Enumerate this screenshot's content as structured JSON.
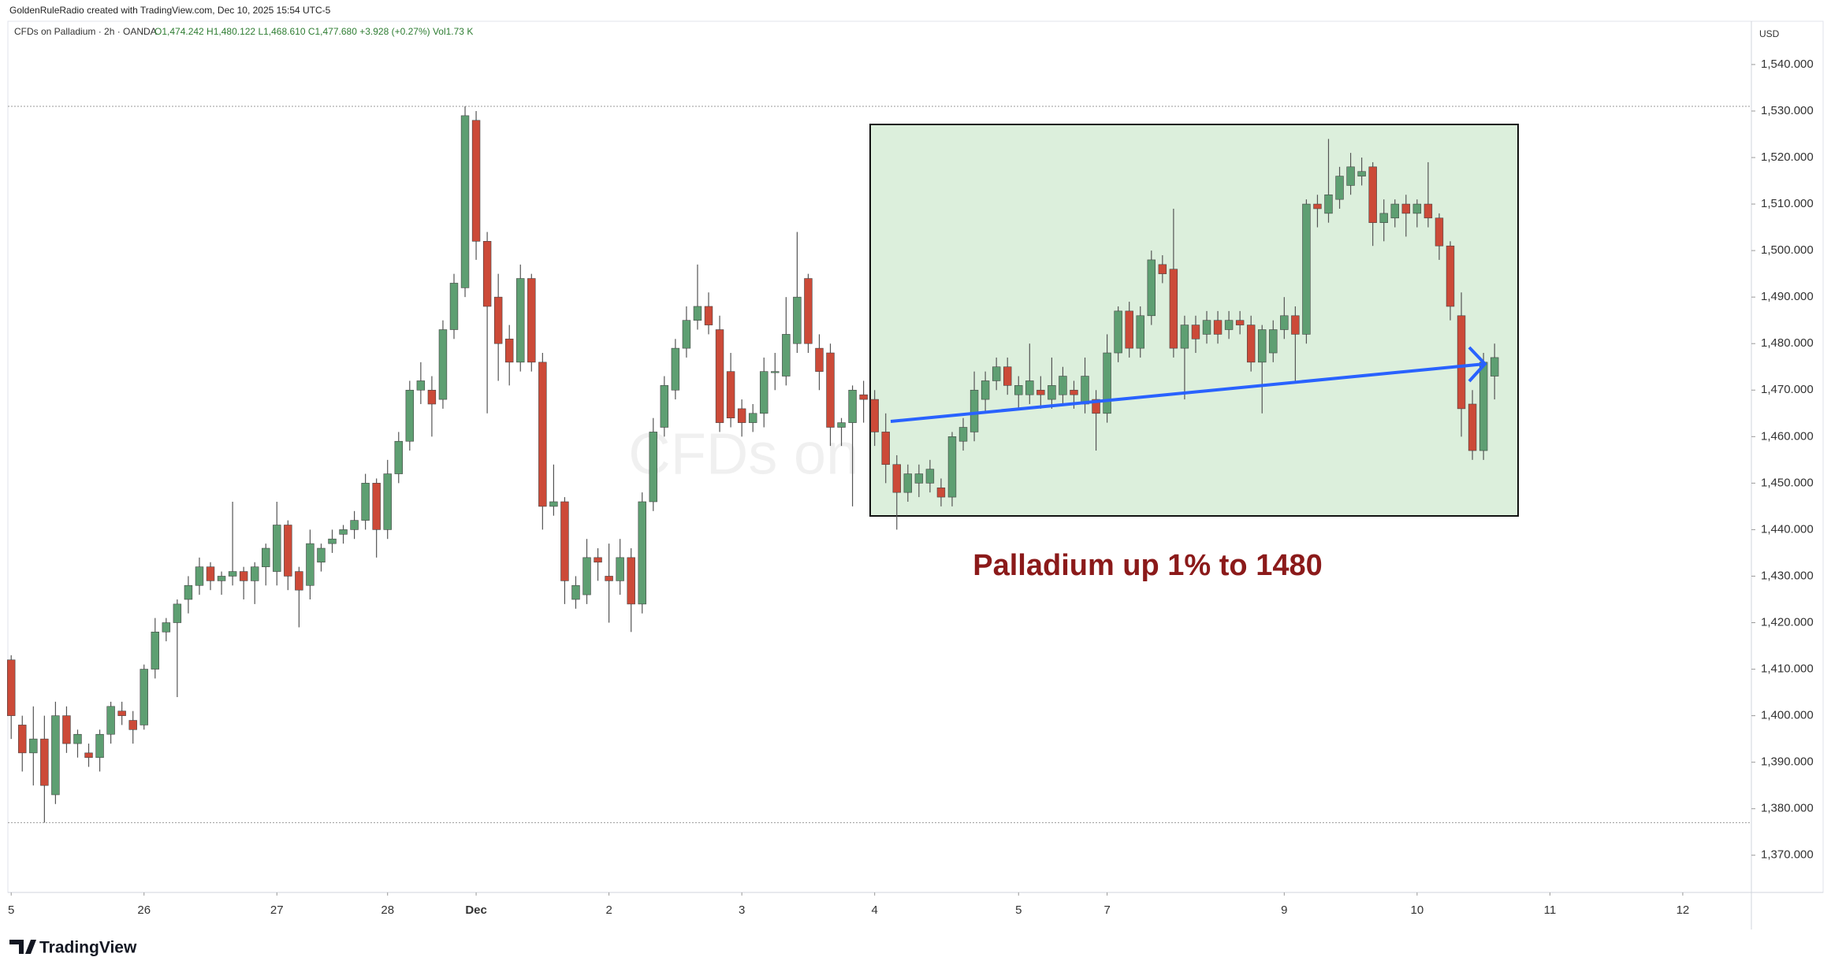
{
  "chart_data": {
    "type": "candlestick",
    "title": "CFDs on Palladium · 2h · OANDA",
    "ohlc_text": "O1,474.242 H1,480.122 L1,468.610 C1,477.680 +3.928 (+0.27%) Vol1.73 K",
    "credit": "GoldenRuleRadio created with TradingView.com, Dec 10, 2025 15:54 UTC-5",
    "watermark": "CFDs on Palladium",
    "annotation": "Palladium up 1% to 1480",
    "y_unit": "USD",
    "brand": "TradingView",
    "up_color": "#5e9f72",
    "down_color": "#cc4a38",
    "ylim": [
      1362,
      1549.3
    ],
    "yticks": [
      {
        "value": 1370,
        "label": "1,370.000"
      },
      {
        "value": 1380,
        "label": "1,380.000"
      },
      {
        "value": 1390,
        "label": "1,390.000"
      },
      {
        "value": 1400,
        "label": "1,400.000"
      },
      {
        "value": 1410,
        "label": "1,410.000"
      },
      {
        "value": 1420,
        "label": "1,420.000"
      },
      {
        "value": 1430,
        "label": "1,430.000"
      },
      {
        "value": 1440,
        "label": "1,440.000"
      },
      {
        "value": 1450,
        "label": "1,450.000"
      },
      {
        "value": 1460,
        "label": "1,460.000"
      },
      {
        "value": 1470,
        "label": "1,470.000"
      },
      {
        "value": 1480,
        "label": "1,480.000"
      },
      {
        "value": 1490,
        "label": "1,490.000"
      },
      {
        "value": 1500,
        "label": "1,500.000"
      },
      {
        "value": 1510,
        "label": "1,510.000"
      },
      {
        "value": 1520,
        "label": "1,520.000"
      },
      {
        "value": 1530,
        "label": "1,530.000"
      },
      {
        "value": 1540,
        "label": "1,540.000"
      }
    ],
    "xlim": [
      -0.3,
      157.2
    ],
    "xticks": [
      {
        "value": 0,
        "label": "5"
      },
      {
        "value": 12,
        "label": "26"
      },
      {
        "value": 24,
        "label": "27"
      },
      {
        "value": 34,
        "label": "28"
      },
      {
        "value": 42,
        "label": "Dec"
      },
      {
        "value": 54,
        "label": "2"
      },
      {
        "value": 66,
        "label": "3"
      },
      {
        "value": 78,
        "label": "4"
      },
      {
        "value": 91,
        "label": "5"
      },
      {
        "value": 99,
        "label": "7"
      },
      {
        "value": 115,
        "label": "9"
      },
      {
        "value": 127,
        "label": "10"
      },
      {
        "value": 139,
        "label": "11"
      },
      {
        "value": 151,
        "label": "12"
      }
    ],
    "ohlc": [
      [
        1412,
        1413,
        1395,
        1400
      ],
      [
        1398,
        1400,
        1388,
        1392
      ],
      [
        1392,
        1402,
        1385,
        1395
      ],
      [
        1395,
        1400,
        1377,
        1385
      ],
      [
        1383,
        1403,
        1381,
        1400
      ],
      [
        1400,
        1402,
        1392,
        1394
      ],
      [
        1394,
        1397,
        1391,
        1396
      ],
      [
        1392,
        1394,
        1389,
        1391
      ],
      [
        1391,
        1397,
        1388,
        1396
      ],
      [
        1396,
        1403,
        1394,
        1402
      ],
      [
        1401,
        1403,
        1398,
        1400
      ],
      [
        1399,
        1401,
        1394,
        1397
      ],
      [
        1398,
        1411,
        1397,
        1410
      ],
      [
        1410,
        1421,
        1408,
        1418
      ],
      [
        1418,
        1421,
        1416,
        1420
      ],
      [
        1420,
        1425,
        1404,
        1424
      ],
      [
        1425,
        1430,
        1422,
        1428
      ],
      [
        1428,
        1434,
        1426,
        1432
      ],
      [
        1432,
        1433,
        1427,
        1429
      ],
      [
        1429,
        1431,
        1426,
        1430
      ],
      [
        1430,
        1446,
        1428,
        1431
      ],
      [
        1431,
        1432,
        1425,
        1429
      ],
      [
        1429,
        1433,
        1424,
        1432
      ],
      [
        1432,
        1437,
        1428,
        1436
      ],
      [
        1431,
        1446,
        1428,
        1441
      ],
      [
        1441,
        1442,
        1427,
        1430
      ],
      [
        1431,
        1432,
        1419,
        1427
      ],
      [
        1428,
        1440,
        1425,
        1437
      ],
      [
        1433,
        1437,
        1431,
        1436
      ],
      [
        1437,
        1440,
        1435,
        1438
      ],
      [
        1439,
        1441,
        1437,
        1440
      ],
      [
        1440,
        1444,
        1438,
        1442
      ],
      [
        1442,
        1452,
        1440,
        1450
      ],
      [
        1450,
        1451,
        1434,
        1440
      ],
      [
        1440,
        1455,
        1438,
        1452
      ],
      [
        1452,
        1461,
        1450,
        1459
      ],
      [
        1459,
        1472,
        1457,
        1470
      ],
      [
        1470,
        1476,
        1467,
        1472
      ],
      [
        1470,
        1473,
        1460,
        1467
      ],
      [
        1468,
        1485,
        1466,
        1483
      ],
      [
        1483,
        1495,
        1481,
        1493
      ],
      [
        1492,
        1531,
        1490,
        1529
      ],
      [
        1528,
        1530,
        1498,
        1502
      ],
      [
        1502,
        1504,
        1465,
        1488
      ],
      [
        1490,
        1495,
        1472,
        1480
      ],
      [
        1481,
        1484,
        1471,
        1476
      ],
      [
        1476,
        1497,
        1474,
        1494
      ],
      [
        1494,
        1495,
        1474,
        1476
      ],
      [
        1476,
        1478,
        1440,
        1445
      ],
      [
        1445,
        1454,
        1443,
        1446
      ],
      [
        1446,
        1447,
        1424,
        1429
      ],
      [
        1425,
        1430,
        1423,
        1428
      ],
      [
        1426,
        1438,
        1424,
        1434
      ],
      [
        1434,
        1436,
        1429,
        1433
      ],
      [
        1430,
        1437,
        1420,
        1429
      ],
      [
        1429,
        1438,
        1426,
        1434
      ],
      [
        1434,
        1436,
        1418,
        1424
      ],
      [
        1424,
        1448,
        1422,
        1446
      ],
      [
        1446,
        1464,
        1444,
        1461
      ],
      [
        1462,
        1473,
        1460,
        1471
      ],
      [
        1470,
        1481,
        1468,
        1479
      ],
      [
        1479,
        1488,
        1477,
        1485
      ],
      [
        1485,
        1497,
        1483,
        1488
      ],
      [
        1488,
        1491,
        1482,
        1484
      ],
      [
        1483,
        1486,
        1461,
        1463
      ],
      [
        1474,
        1478,
        1462,
        1464
      ],
      [
        1466,
        1468,
        1460,
        1463
      ],
      [
        1463,
        1467,
        1461,
        1465
      ],
      [
        1465,
        1477,
        1462,
        1474
      ],
      [
        1474,
        1478,
        1470,
        1474
      ],
      [
        1473,
        1490,
        1471,
        1482
      ],
      [
        1480,
        1504,
        1478,
        1490
      ],
      [
        1494,
        1495,
        1478,
        1480
      ],
      [
        1479,
        1482,
        1470,
        1474
      ],
      [
        1478,
        1480,
        1458,
        1462
      ],
      [
        1462,
        1464,
        1458,
        1463
      ],
      [
        1463,
        1471,
        1445,
        1470
      ],
      [
        1469,
        1472,
        1463,
        1468
      ],
      [
        1468,
        1470,
        1458,
        1461
      ],
      [
        1461,
        1465,
        1450,
        1454
      ],
      [
        1454,
        1456,
        1440,
        1448
      ],
      [
        1448,
        1454,
        1446,
        1452
      ],
      [
        1450,
        1454,
        1447,
        1452
      ],
      [
        1450,
        1455,
        1448,
        1453
      ],
      [
        1449,
        1451,
        1445,
        1447
      ],
      [
        1447,
        1461,
        1445,
        1460
      ],
      [
        1459,
        1464,
        1457,
        1462
      ],
      [
        1461,
        1474,
        1459,
        1470
      ],
      [
        1468,
        1474,
        1465,
        1472
      ],
      [
        1472,
        1477,
        1470,
        1475
      ],
      [
        1475,
        1477,
        1469,
        1471
      ],
      [
        1469,
        1473,
        1466,
        1471
      ],
      [
        1469,
        1480,
        1467,
        1472
      ],
      [
        1470,
        1473,
        1466,
        1469
      ],
      [
        1468,
        1477,
        1466,
        1471
      ],
      [
        1469,
        1475,
        1467,
        1473
      ],
      [
        1470,
        1472,
        1466,
        1469
      ],
      [
        1467,
        1477,
        1465,
        1473
      ],
      [
        1468,
        1470,
        1457,
        1465
      ],
      [
        1465,
        1482,
        1463,
        1478
      ],
      [
        1478,
        1488,
        1476,
        1487
      ],
      [
        1487,
        1489,
        1477,
        1479
      ],
      [
        1479,
        1488,
        1477,
        1486
      ],
      [
        1486,
        1500,
        1484,
        1498
      ],
      [
        1497,
        1499,
        1493,
        1495
      ],
      [
        1496,
        1509,
        1477,
        1479
      ],
      [
        1479,
        1486,
        1468,
        1484
      ],
      [
        1484,
        1486,
        1478,
        1481
      ],
      [
        1482,
        1487,
        1480,
        1485
      ],
      [
        1485,
        1487,
        1480,
        1482
      ],
      [
        1483,
        1487,
        1481,
        1485
      ],
      [
        1485,
        1487,
        1482,
        1484
      ],
      [
        1484,
        1486,
        1474,
        1476
      ],
      [
        1476,
        1484,
        1465,
        1483
      ],
      [
        1478,
        1485,
        1476,
        1483
      ],
      [
        1483,
        1490,
        1481,
        1486
      ],
      [
        1486,
        1488,
        1472,
        1482
      ],
      [
        1482,
        1511,
        1480,
        1510
      ],
      [
        1510,
        1512,
        1505,
        1509
      ],
      [
        1508,
        1524,
        1506,
        1512
      ],
      [
        1511,
        1518,
        1509,
        1516
      ],
      [
        1514,
        1521,
        1512,
        1518
      ],
      [
        1516,
        1520,
        1514,
        1517
      ],
      [
        1518,
        1519,
        1501,
        1506
      ],
      [
        1506,
        1511,
        1502,
        1508
      ],
      [
        1507,
        1511,
        1505,
        1510
      ],
      [
        1510,
        1512,
        1503,
        1508
      ],
      [
        1508,
        1511,
        1505,
        1510
      ],
      [
        1510,
        1519,
        1505,
        1507
      ],
      [
        1507,
        1508,
        1498,
        1501
      ],
      [
        1501,
        1502,
        1485,
        1488
      ],
      [
        1486,
        1491,
        1460,
        1466
      ],
      [
        1467,
        1470,
        1455,
        1457
      ],
      [
        1457,
        1478,
        1455,
        1476
      ],
      [
        1473,
        1480,
        1468,
        1477
      ]
    ]
  }
}
